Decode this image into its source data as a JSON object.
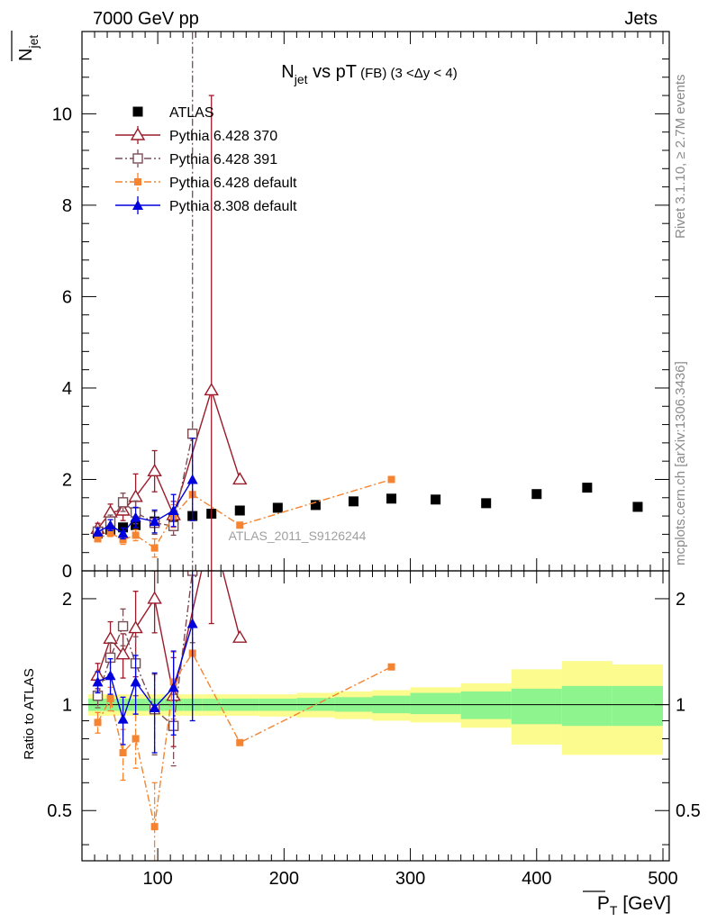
{
  "header": {
    "left": "7000 GeV pp",
    "right": "Jets"
  },
  "side_labels": {
    "rivet": "Rivet 3.1.10, ≥ 2.7M events",
    "mcplots": "mcplots.cern.ch [arXiv:1306.3436]"
  },
  "colors": {
    "atlas": "#000000",
    "p6_370": "#9b1b2a",
    "p6_391": "#7a4d55",
    "p6_default": "#f5832f",
    "p8_default": "#0000dd",
    "band_inner": "#8ef58e",
    "band_outer": "#fbfb8e"
  },
  "chart_data": [
    {
      "type": "line",
      "title": "N_jet vs pT (FB) (3 < Δy < 4)",
      "title_parts": {
        "n": "N",
        "sub": "jet",
        "vs": " vs pT",
        "fb": " (FB)",
        "range": " (3 <Δy < 4)"
      },
      "ylabel": "N_jet",
      "ylabel_parts": {
        "n": "N",
        "sub": "jet"
      },
      "xlim": [
        40,
        505
      ],
      "ylim": [
        0,
        11.8
      ],
      "yticks": [
        0,
        2,
        4,
        6,
        8,
        10
      ],
      "watermark": "ATLAS_2011_S9126244",
      "legend_position": "top-left",
      "series": [
        {
          "key": "atlas",
          "name": "ATLAS",
          "style": "marker",
          "x": [
            52.5,
            62.5,
            72.5,
            82.5,
            97.5,
            112.5,
            127.5,
            142.5,
            165,
            195,
            225,
            255,
            285,
            320,
            360,
            400,
            440,
            480
          ],
          "y": [
            0.82,
            0.9,
            0.95,
            1.0,
            1.08,
            1.13,
            1.2,
            1.25,
            1.32,
            1.38,
            1.44,
            1.52,
            1.58,
            1.56,
            1.48,
            1.68,
            1.82,
            1.4
          ]
        },
        {
          "key": "p6_370",
          "name": "Pythia 6.428 370",
          "style": "solid",
          "marker": "triangle-open",
          "x": [
            52.5,
            62.5,
            72.5,
            82.5,
            97.5,
            112.5,
            142.5,
            165
          ],
          "y": [
            0.92,
            1.28,
            1.32,
            1.62,
            2.18,
            1.22,
            3.95,
            2.0
          ],
          "err": [
            0.12,
            0.18,
            0.22,
            0.5,
            0.45,
            0.3,
            6.45,
            0
          ]
        },
        {
          "key": "p6_391",
          "name": "Pythia 6.428 391",
          "style": "dashdot",
          "marker": "square-open",
          "x": [
            52.5,
            62.5,
            72.5,
            82.5,
            97.5,
            112.5,
            127.5
          ],
          "y": [
            0.86,
            1.08,
            1.5,
            1.28,
            1.05,
            0.98,
            3.0
          ],
          "err": [
            0.1,
            0.14,
            0.2,
            0.25,
            0.25,
            0.2,
            9.1
          ]
        },
        {
          "key": "p6_default",
          "name": "Pythia 6.428 default",
          "style": "dashdot",
          "marker": "square-filled",
          "x": [
            52.5,
            62.5,
            72.5,
            82.5,
            97.5,
            112.5,
            127.5,
            165,
            285
          ],
          "y": [
            0.7,
            0.83,
            0.68,
            0.78,
            0.5,
            1.2,
            1.67,
            1.0,
            2.0
          ],
          "err": [
            0.06,
            0.08,
            0.1,
            0.12,
            0.2,
            0.25,
            0,
            0,
            0
          ]
        },
        {
          "key": "p8_default",
          "name": "Pythia 8.308 default",
          "style": "solid",
          "marker": "triangle-filled",
          "x": [
            52.5,
            62.5,
            72.5,
            82.5,
            97.5,
            112.5,
            127.5
          ],
          "y": [
            0.85,
            1.0,
            0.82,
            1.17,
            1.08,
            1.32,
            2.0
          ],
          "err": [
            0.08,
            0.12,
            0.12,
            0.22,
            0.25,
            0.35,
            0.9
          ]
        }
      ]
    },
    {
      "type": "line",
      "ylabel": "Ratio to ATLAS",
      "xlabel": "P_T [GeV]",
      "xlabel_parts": {
        "p": "P",
        "sub": "T",
        "unit": " [GeV]"
      },
      "xlim": [
        40,
        505
      ],
      "ylim": [
        0.36,
        2.4
      ],
      "yticks": [
        0.5,
        1,
        2
      ],
      "xticks": [
        100,
        200,
        300,
        400,
        500
      ],
      "reference_line": 1,
      "bands": {
        "edges": [
          45,
          60,
          70,
          80,
          90,
          105,
          120,
          135,
          150,
          180,
          210,
          240,
          270,
          300,
          340,
          380,
          420,
          460,
          500
        ],
        "inner_lo": [
          0.96,
          0.96,
          0.96,
          0.96,
          0.96,
          0.96,
          0.96,
          0.96,
          0.96,
          0.96,
          0.96,
          0.955,
          0.945,
          0.94,
          0.91,
          0.88,
          0.87,
          0.87,
          0.73
        ],
        "inner_hi": [
          1.04,
          1.04,
          1.04,
          1.04,
          1.04,
          1.04,
          1.04,
          1.04,
          1.04,
          1.04,
          1.045,
          1.05,
          1.06,
          1.08,
          1.09,
          1.11,
          1.13,
          1.13,
          1.38
        ],
        "outer_lo": [
          0.93,
          0.93,
          0.93,
          0.93,
          0.93,
          0.93,
          0.93,
          0.93,
          0.93,
          0.925,
          0.92,
          0.91,
          0.9,
          0.89,
          0.86,
          0.77,
          0.72,
          0.72,
          0.36
        ],
        "outer_hi": [
          1.07,
          1.07,
          1.07,
          1.07,
          1.07,
          1.07,
          1.07,
          1.07,
          1.07,
          1.07,
          1.08,
          1.09,
          1.1,
          1.12,
          1.15,
          1.26,
          1.33,
          1.3,
          1.68
        ]
      },
      "series": [
        {
          "key": "p6_370",
          "x": [
            52.5,
            62.5,
            72.5,
            82.5,
            97.5,
            112.5,
            142.5,
            165
          ],
          "y": [
            1.21,
            1.54,
            1.39,
            1.65,
            2.0,
            1.06,
            3.2,
            1.55
          ],
          "err": [
            0.1,
            0.18,
            0.2,
            0.45,
            0.4,
            0.3,
            1.5,
            0
          ]
        },
        {
          "key": "p6_391",
          "x": [
            52.5,
            62.5,
            72.5,
            82.5,
            97.5,
            112.5,
            127.5
          ],
          "y": [
            1.06,
            1.36,
            1.67,
            1.31,
            0.97,
            0.87,
            2.4
          ],
          "err": [
            0.08,
            0.14,
            0.2,
            0.25,
            0.25,
            0.2,
            0.9
          ]
        },
        {
          "key": "p6_default",
          "x": [
            52.5,
            62.5,
            72.5,
            82.5,
            97.5,
            112.5,
            127.5,
            165,
            285
          ],
          "y": [
            0.89,
            1.04,
            0.73,
            0.8,
            0.45,
            1.16,
            1.4,
            0.78,
            1.28
          ],
          "err": [
            0.06,
            0.08,
            0.12,
            0.14,
            0.15,
            0.25,
            0,
            0,
            0
          ]
        },
        {
          "key": "p8_default",
          "x": [
            52.5,
            62.5,
            72.5,
            82.5,
            97.5,
            112.5,
            127.5
          ],
          "y": [
            1.16,
            1.21,
            0.91,
            1.16,
            0.98,
            1.12,
            1.7
          ],
          "err": [
            0.08,
            0.14,
            0.14,
            0.22,
            0.25,
            0.3,
            0.8
          ]
        }
      ]
    }
  ]
}
